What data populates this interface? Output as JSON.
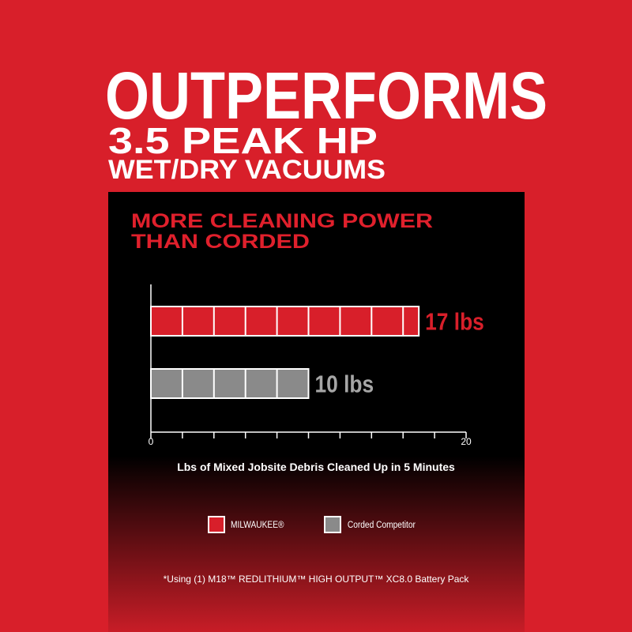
{
  "header": {
    "headline": "OUTPERFORMS",
    "subheadline": [
      "3.5 PEAK HP",
      "WET/DRY VACUUMS"
    ]
  },
  "chart_data": {
    "type": "hbar",
    "subtitle": [
      "MORE CLEANING POWER",
      "THAN CORDED"
    ],
    "x_label": "Lbs of Mixed Jobsite Debris Cleaned Up in 5 Minutes",
    "xlim": [
      0,
      20
    ],
    "xticks": [
      0,
      20
    ],
    "minor_xticks": [
      2,
      4,
      6,
      8,
      10,
      12,
      14,
      16,
      18
    ],
    "series": [
      {
        "name": "MILWAUKEE®",
        "color": "#d81f2a",
        "values": [
          17
        ],
        "value_labels": [
          "17 lbs"
        ],
        "label_color": "#d81f2a"
      },
      {
        "name": "Corded Competitor",
        "color": "#8a8a8a",
        "values": [
          10
        ],
        "value_labels": [
          "10 lbs"
        ],
        "label_color": "#a6a6a6"
      }
    ],
    "footnote": "*Using (1) M18™ REDLITHIUM™ HIGH OUTPUT™ XC8.0 Battery Pack"
  }
}
